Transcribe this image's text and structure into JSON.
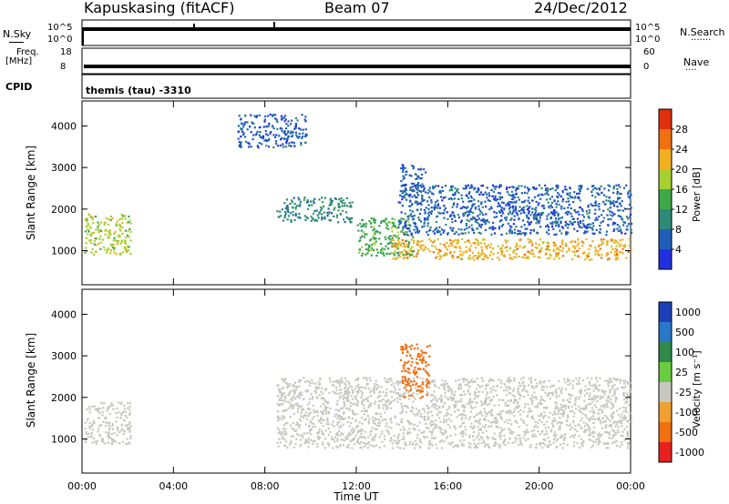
{
  "header": {
    "station": "Kapuskasing (fitACF)",
    "beam": "Beam 07",
    "date": "24/Dec/2012"
  },
  "strips": {
    "nsky": {
      "label": "N.Sky",
      "ticks": [
        "10^5",
        "10^0"
      ]
    },
    "nsearch": {
      "label": "N.Search",
      "marker": "·······"
    },
    "freq": {
      "label_top": "Freq.",
      "label_bottom": "[MHz]",
      "ticks_left": [
        "18",
        "8"
      ]
    },
    "nave": {
      "label": "Nave",
      "marker": "····",
      "ticks_right": [
        "60",
        "0"
      ]
    },
    "cpid": {
      "label": "CPID",
      "value": "themis (tau) -3310"
    }
  },
  "chart_data": [
    {
      "type": "heatmap",
      "title": "",
      "ylabel": "Slant Range [km]",
      "xlabel": "",
      "xlim": [
        "00:00",
        "24:00"
      ],
      "ylim": [
        180,
        4600
      ],
      "yticks": [
        1000,
        2000,
        3000,
        4000
      ],
      "colorbar": {
        "label": "Power [dB]",
        "ticks": [
          4,
          8,
          12,
          16,
          20,
          24,
          28
        ],
        "colors": [
          "#2030e0",
          "#1f5fb8",
          "#2f8a78",
          "#3ea84a",
          "#a8d030",
          "#f0b020",
          "#f07010",
          "#e03010"
        ]
      },
      "features": [
        {
          "start_hour": 0.1,
          "end_hour": 2.1,
          "range_min_km": 900,
          "range_max_km": 1900,
          "power_db": 18
        },
        {
          "start_hour": 6.8,
          "end_hour": 9.8,
          "range_min_km": 3500,
          "range_max_km": 4300,
          "power_db": 4
        },
        {
          "start_hour": 8.5,
          "end_hour": 11.8,
          "range_min_km": 1700,
          "range_max_km": 2300,
          "power_db": 10
        },
        {
          "start_hour": 12.0,
          "end_hour": 14.5,
          "range_min_km": 900,
          "range_max_km": 1800,
          "power_db": 14
        },
        {
          "start_hour": 13.5,
          "end_hour": 24.0,
          "range_min_km": 800,
          "range_max_km": 1300,
          "power_db": 22
        },
        {
          "start_hour": 13.8,
          "end_hour": 24.0,
          "range_min_km": 1400,
          "range_max_km": 2600,
          "power_db": 6
        },
        {
          "start_hour": 13.9,
          "end_hour": 15.0,
          "range_min_km": 2300,
          "range_max_km": 3100,
          "power_db": 6
        }
      ]
    },
    {
      "type": "heatmap",
      "title": "",
      "ylabel": "Slant Range [km]",
      "xlabel": "Time UT",
      "xlim": [
        "00:00",
        "24:00"
      ],
      "ylim": [
        180,
        4600
      ],
      "xticks": [
        "00:00",
        "04:00",
        "08:00",
        "12:00",
        "16:00",
        "20:00",
        "00:00"
      ],
      "yticks": [
        1000,
        2000,
        3000,
        4000
      ],
      "colorbar": {
        "label": "Velocity [m s⁻¹]",
        "ticks": [
          "1000",
          "500",
          "100",
          "25",
          "-25",
          "-100",
          "-500",
          "-1000"
        ],
        "colors": [
          "#1c3fb8",
          "#2a78c8",
          "#2f8a4a",
          "#6acc40",
          "#c8c8c0",
          "#f0a030",
          "#f07010",
          "#e82020"
        ]
      },
      "features": [
        {
          "start_hour": 0.1,
          "end_hour": 2.1,
          "range_min_km": 900,
          "range_max_km": 1900,
          "velocity": "-25 to 25"
        },
        {
          "start_hour": 8.5,
          "end_hour": 24.0,
          "range_min_km": 800,
          "range_max_km": 2500,
          "velocity": "-25 to 25"
        },
        {
          "start_hour": 13.9,
          "end_hour": 15.2,
          "range_min_km": 2000,
          "range_max_km": 3300,
          "velocity": "-100 to -500"
        }
      ]
    }
  ],
  "colors": {
    "ground_scatter": "#c8c8c0",
    "frame": "#000000"
  }
}
